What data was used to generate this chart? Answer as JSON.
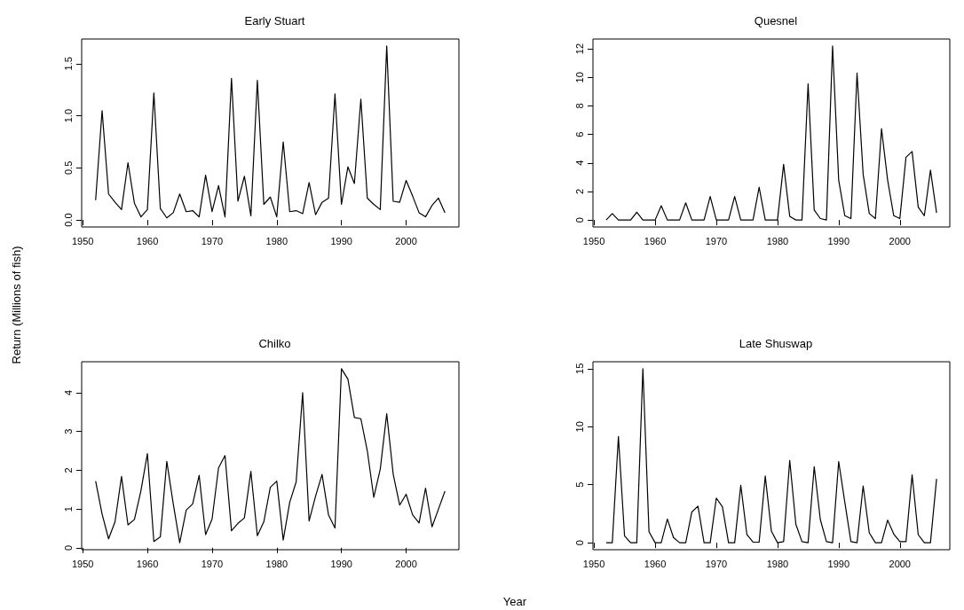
{
  "chart_data": [
    {
      "type": "line",
      "title": "Early Stuart",
      "ylabel": "Return (Millions of fish)",
      "xlim": [
        1949.84,
        2008.16
      ],
      "xticks": [
        1950,
        1960,
        1970,
        1980,
        1990,
        2000
      ],
      "ylim": [
        -0.067,
        1.737
      ],
      "yticks": [
        {
          "value": 0,
          "label": "0.0"
        },
        {
          "value": 0.5,
          "label": "0.5"
        },
        {
          "value": 1,
          "label": "1.0"
        },
        {
          "value": 1.5,
          "label": "1.5"
        }
      ],
      "x": [
        1952,
        1953,
        1954,
        1955,
        1956,
        1957,
        1958,
        1959,
        1960,
        1961,
        1962,
        1963,
        1964,
        1965,
        1966,
        1967,
        1968,
        1969,
        1970,
        1971,
        1972,
        1973,
        1974,
        1975,
        1976,
        1977,
        1978,
        1979,
        1980,
        1981,
        1982,
        1983,
        1984,
        1985,
        1986,
        1987,
        1988,
        1989,
        1990,
        1991,
        1992,
        1993,
        1994,
        1995,
        1996,
        1997,
        1998,
        1999,
        2000,
        2001,
        2002,
        2003,
        2004,
        2005,
        2006
      ],
      "series": [
        {
          "color": "#000000",
          "values": [
            0.19,
            1.05,
            0.25,
            0.17,
            0.1,
            0.55,
            0.16,
            0.03,
            0.1,
            1.22,
            0.11,
            0.02,
            0.07,
            0.25,
            0.08,
            0.09,
            0.03,
            0.43,
            0.08,
            0.33,
            0.03,
            1.36,
            0.18,
            0.42,
            0.04,
            1.34,
            0.15,
            0.22,
            0.03,
            0.75,
            0.08,
            0.09,
            0.06,
            0.36,
            0.05,
            0.17,
            0.21,
            1.21,
            0.15,
            0.51,
            0.35,
            1.16,
            0.21,
            0.15,
            0.1,
            1.67,
            0.18,
            0.17,
            0.38,
            0.23,
            0.07,
            0.03,
            0.14,
            0.21,
            0.07
          ]
        }
      ]
    },
    {
      "type": "line",
      "title": "Quesnel",
      "xlim": [
        1949.84,
        2008.16
      ],
      "xticks": [
        1950,
        1960,
        1970,
        1980,
        1990,
        2000
      ],
      "ylim": [
        -0.49,
        12.69
      ],
      "yticks": [
        0,
        2,
        4,
        6,
        8,
        10,
        12
      ],
      "x": [
        1952,
        1953,
        1954,
        1955,
        1956,
        1957,
        1958,
        1959,
        1960,
        1961,
        1962,
        1963,
        1964,
        1965,
        1966,
        1967,
        1968,
        1969,
        1970,
        1971,
        1972,
        1973,
        1974,
        1975,
        1976,
        1977,
        1978,
        1979,
        1980,
        1981,
        1982,
        1983,
        1984,
        1985,
        1986,
        1987,
        1988,
        1989,
        1990,
        1991,
        1992,
        1993,
        1994,
        1995,
        1996,
        1997,
        1998,
        1999,
        2000,
        2001,
        2002,
        2003,
        2004,
        2005,
        2006
      ],
      "series": [
        {
          "color": "#000000",
          "values": [
            0,
            0.45,
            0,
            0,
            0,
            0.55,
            0,
            0,
            0,
            1,
            0,
            0,
            0,
            1.2,
            0,
            0,
            0,
            1.65,
            0,
            0,
            0,
            1.65,
            0,
            0,
            0,
            2.3,
            0,
            0,
            0,
            3.9,
            0.25,
            0,
            0,
            9.55,
            0.7,
            0.1,
            0,
            12.2,
            2.8,
            0.3,
            0.1,
            10.3,
            3.2,
            0.45,
            0.1,
            6.4,
            2.8,
            0.3,
            0.1,
            4.4,
            4.8,
            0.9,
            0.3,
            3.5,
            0.5
          ]
        }
      ]
    },
    {
      "type": "line",
      "title": "Chilko",
      "xlim": [
        1949.84,
        2008.16
      ],
      "xticks": [
        1950,
        1960,
        1970,
        1980,
        1990,
        2000
      ],
      "ylim": [
        -0.05,
        4.8
      ],
      "yticks": [
        0,
        1,
        2,
        3,
        4
      ],
      "x": [
        1952,
        1953,
        1954,
        1955,
        1956,
        1957,
        1958,
        1959,
        1960,
        1961,
        1962,
        1963,
        1964,
        1965,
        1966,
        1967,
        1968,
        1969,
        1970,
        1971,
        1972,
        1973,
        1974,
        1975,
        1976,
        1977,
        1978,
        1979,
        1980,
        1981,
        1982,
        1983,
        1984,
        1985,
        1986,
        1987,
        1988,
        1989,
        1990,
        1991,
        1992,
        1993,
        1994,
        1995,
        1996,
        1997,
        1998,
        1999,
        2000,
        2001,
        2002,
        2003,
        2004,
        2005,
        2006
      ],
      "series": [
        {
          "color": "#000000",
          "values": [
            1.72,
            0.87,
            0.23,
            0.67,
            1.84,
            0.59,
            0.73,
            1.47,
            2.43,
            0.16,
            0.28,
            2.23,
            1.13,
            0.13,
            0.97,
            1.13,
            1.87,
            0.34,
            0.74,
            2.06,
            2.38,
            0.44,
            0.63,
            0.77,
            1.97,
            0.31,
            0.67,
            1.56,
            1.72,
            0.2,
            1.17,
            1.7,
            4,
            0.69,
            1.33,
            1.89,
            0.85,
            0.51,
            4.62,
            4.35,
            3.36,
            3.33,
            2.5,
            1.3,
            2.03,
            3.46,
            1.9,
            1.1,
            1.38,
            0.85,
            0.64,
            1.54,
            0.54,
            1,
            1.46
          ]
        }
      ]
    },
    {
      "type": "line",
      "title": "Late Shuswap",
      "xlabel": "Year",
      "xlim": [
        1949.84,
        2008.16
      ],
      "xticks": [
        1950,
        1960,
        1970,
        1980,
        1990,
        2000
      ],
      "ylim": [
        -0.6,
        15.6
      ],
      "yticks": [
        0,
        5,
        10,
        15
      ],
      "x": [
        1952,
        1953,
        1954,
        1955,
        1956,
        1957,
        1958,
        1959,
        1960,
        1961,
        1962,
        1963,
        1964,
        1965,
        1966,
        1967,
        1968,
        1969,
        1970,
        1971,
        1972,
        1973,
        1974,
        1975,
        1976,
        1977,
        1978,
        1979,
        1980,
        1981,
        1982,
        1983,
        1984,
        1985,
        1986,
        1987,
        1988,
        1989,
        1990,
        1991,
        1992,
        1993,
        1994,
        1995,
        1996,
        1997,
        1998,
        1999,
        2000,
        2001,
        2002,
        2003,
        2004,
        2005,
        2006
      ],
      "series": [
        {
          "color": "#000000",
          "values": [
            0,
            0,
            9.15,
            0.6,
            0,
            0,
            15,
            0.95,
            0,
            0,
            2.05,
            0.45,
            0,
            0,
            2.65,
            3.15,
            0,
            0,
            3.85,
            3.1,
            0,
            0,
            4.95,
            0.7,
            0.05,
            0.05,
            5.75,
            1,
            0,
            0.1,
            7.1,
            1.6,
            0.1,
            0,
            6.55,
            2,
            0.1,
            0,
            7,
            3.5,
            0.1,
            0,
            4.9,
            0.85,
            0,
            0,
            1.95,
            0.75,
            0.1,
            0.1,
            5.85,
            0.7,
            0,
            0,
            5.5
          ]
        }
      ]
    }
  ]
}
